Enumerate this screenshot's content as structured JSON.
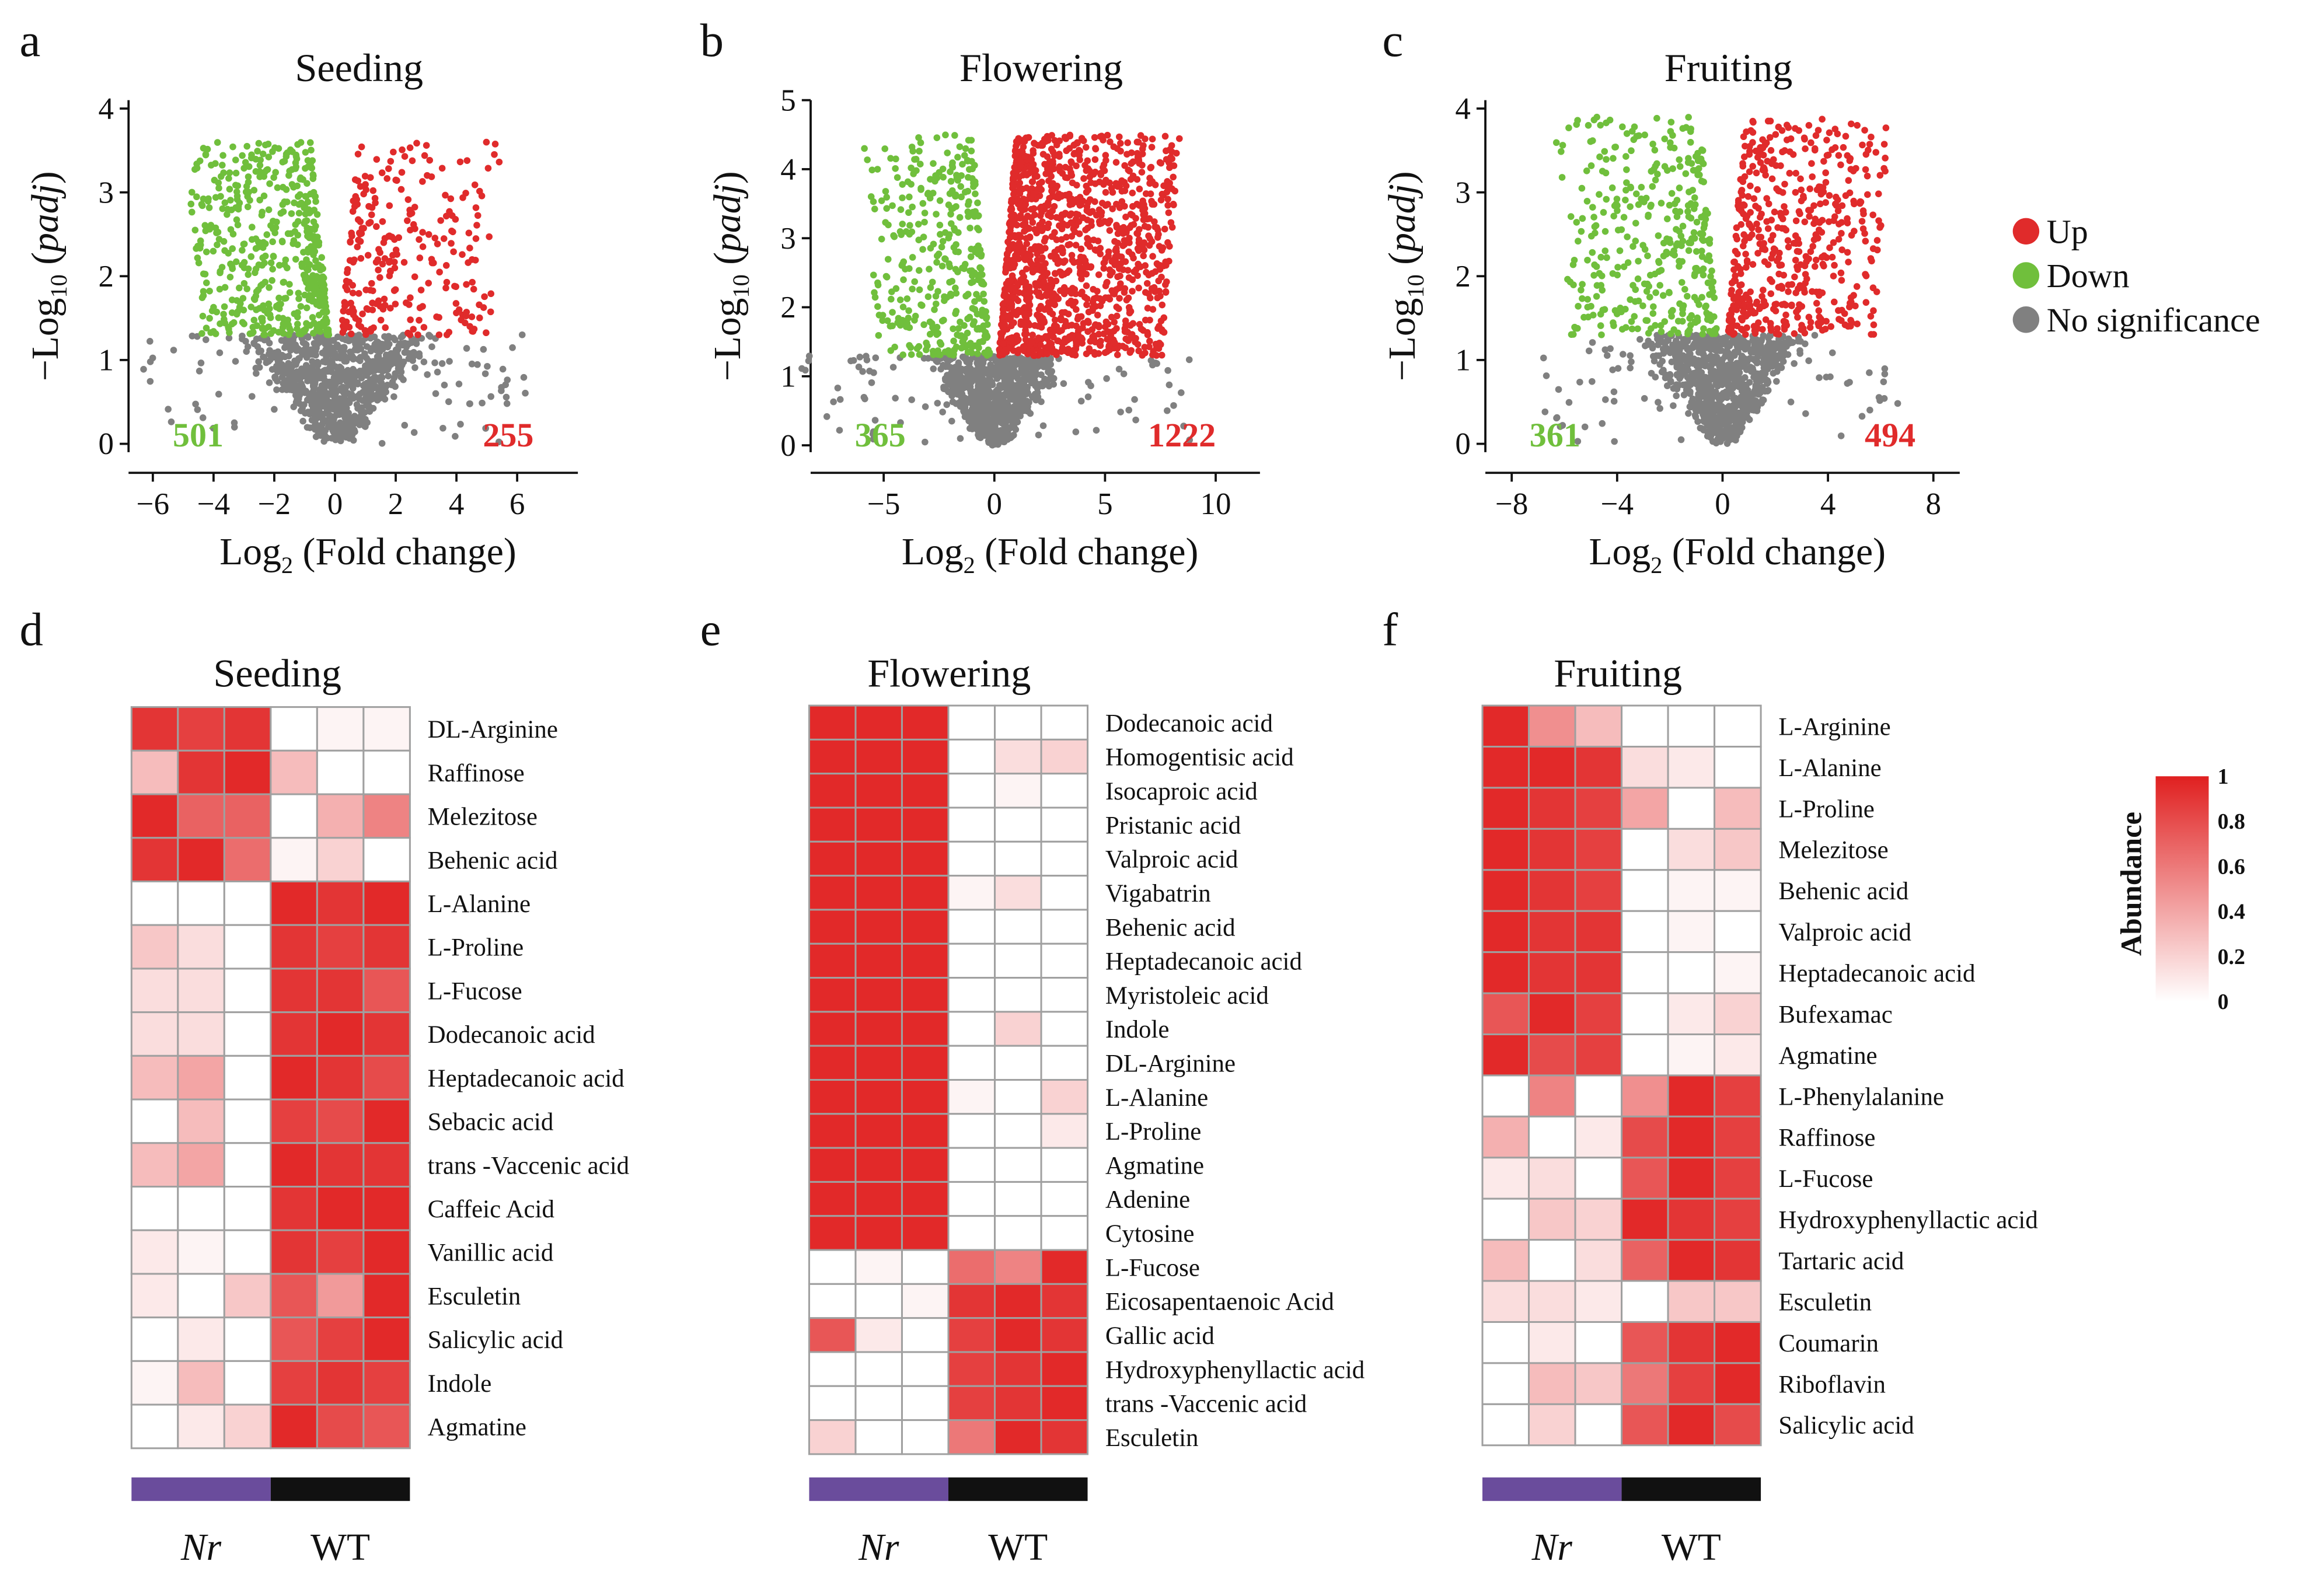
{
  "colors": {
    "up": "#e02b2b",
    "down": "#70bf3c",
    "ns": "#808080",
    "nr_bar": "#6a4c9c",
    "wt_bar": "#111111",
    "cell_grid": "#a0a0a0"
  },
  "legend": {
    "up": "Up",
    "down": "Down",
    "ns": "No significance"
  },
  "chart_data": [
    {
      "id": "a",
      "type": "scatter",
      "title": "Seeding",
      "xlabel": "Log2 (Fold change)",
      "ylabel": "-Log10 (padj)",
      "xlim": [
        -6.8,
        8
      ],
      "ylim": [
        -0.1,
        4.1
      ],
      "xticks": [
        -6,
        -4,
        -2,
        0,
        2,
        4,
        6
      ],
      "xtick_labels": [
        "−6",
        "−4",
        "−2",
        "0",
        "2",
        "4",
        "6"
      ],
      "yticks": [
        0,
        1,
        2,
        3,
        4
      ],
      "ytick_labels": [
        "0",
        "1",
        "2",
        "3",
        "4"
      ],
      "down_count": "501",
      "up_count": "255",
      "down_n": 501,
      "up_n": 255,
      "ns_n": 900,
      "sig_y": 1.3,
      "ymax": 3.6
    },
    {
      "id": "b",
      "type": "scatter",
      "title": "Flowering",
      "xlabel": "Log2 (Fold change)",
      "ylabel": "-Log10 (padj)",
      "xlim": [
        -8.3,
        12
      ],
      "ylim": [
        -0.1,
        5.0
      ],
      "xticks": [
        -5,
        0,
        5,
        10
      ],
      "xtick_labels": [
        "−5",
        "0",
        "5",
        "10"
      ],
      "yticks": [
        0,
        1,
        2,
        3,
        4,
        5
      ],
      "ytick_labels": [
        "0",
        "1",
        "2",
        "3",
        "4",
        "5"
      ],
      "down_count": "365",
      "up_count": "1222",
      "down_n": 365,
      "up_n": 1222,
      "ns_n": 900,
      "sig_y": 1.3,
      "ymax": 4.5
    },
    {
      "id": "c",
      "type": "scatter",
      "title": "Fruiting",
      "xlabel": "Log2 (Fold change)",
      "ylabel": "-Log10 (padj)",
      "xlim": [
        -9,
        9
      ],
      "ylim": [
        -0.1,
        4.1
      ],
      "xticks": [
        -8,
        -4,
        0,
        4,
        8
      ],
      "xtick_labels": [
        "−8",
        "−4",
        "0",
        "4",
        "8"
      ],
      "yticks": [
        0,
        1,
        2,
        3,
        4
      ],
      "ytick_labels": [
        "0",
        "1",
        "2",
        "3",
        "4"
      ],
      "down_count": "361",
      "up_count": "494",
      "down_n": 361,
      "up_n": 494,
      "ns_n": 900,
      "sig_y": 1.3,
      "ymax": 3.9
    },
    {
      "id": "d",
      "type": "heatmap",
      "title": "Seeding",
      "groups": [
        "Nr",
        "WT"
      ],
      "rows": [
        "DL-Arginine",
        "Raffinose",
        "Melezitose",
        "Behenic acid",
        "L-Alanine",
        "L-Proline",
        "L-Fucose",
        "Dodecanoic acid",
        "Heptadecanoic acid",
        "Sebacic acid",
        "trans -Vaccenic acid",
        "Caffeic Acid",
        "Vanillic acid",
        "Esculetin",
        "Salicylic acid",
        "Indole",
        "Agmatine"
      ],
      "values": [
        [
          0.9,
          0.85,
          0.9,
          0.0,
          0.05,
          0.05
        ],
        [
          0.3,
          0.9,
          0.95,
          0.3,
          0.0,
          0.0
        ],
        [
          0.95,
          0.7,
          0.7,
          0.0,
          0.35,
          0.55
        ],
        [
          0.9,
          0.95,
          0.65,
          0.05,
          0.2,
          0.0
        ],
        [
          0.0,
          0.0,
          0.0,
          0.95,
          0.9,
          0.95
        ],
        [
          0.25,
          0.15,
          0.0,
          0.9,
          0.85,
          0.9
        ],
        [
          0.15,
          0.15,
          0.0,
          0.9,
          0.9,
          0.75
        ],
        [
          0.15,
          0.15,
          0.0,
          0.9,
          0.95,
          0.9
        ],
        [
          0.3,
          0.4,
          0.0,
          0.95,
          0.9,
          0.8
        ],
        [
          0.0,
          0.3,
          0.0,
          0.85,
          0.8,
          0.95
        ],
        [
          0.3,
          0.4,
          0.0,
          0.95,
          0.9,
          0.9
        ],
        [
          0.0,
          0.0,
          0.0,
          0.9,
          0.95,
          0.95
        ],
        [
          0.1,
          0.05,
          0.0,
          0.9,
          0.85,
          0.95
        ],
        [
          0.1,
          0.0,
          0.25,
          0.75,
          0.45,
          0.95
        ],
        [
          0.0,
          0.1,
          0.0,
          0.75,
          0.85,
          0.95
        ],
        [
          0.05,
          0.3,
          0.0,
          0.85,
          0.9,
          0.85
        ],
        [
          0.0,
          0.1,
          0.2,
          0.95,
          0.8,
          0.75
        ]
      ]
    },
    {
      "id": "e",
      "type": "heatmap",
      "title": "Flowering",
      "groups": [
        "Nr",
        "WT"
      ],
      "rows": [
        "Dodecanoic acid",
        "Homogentisic acid",
        "Isocaproic acid",
        "Pristanic acid",
        "Valproic acid",
        "Vigabatrin",
        "Behenic acid",
        "Heptadecanoic acid",
        "Myristoleic acid",
        "Indole",
        "DL-Arginine",
        "L-Alanine",
        "L-Proline",
        "Agmatine",
        "Adenine",
        "Cytosine",
        "L-Fucose",
        "Eicosapentaenoic Acid",
        "Gallic acid",
        "Hydroxyphenyllactic acid",
        "trans -Vaccenic acid",
        "Esculetin"
      ],
      "values": [
        [
          0.95,
          0.95,
          0.95,
          0.0,
          0.0,
          0.0
        ],
        [
          0.95,
          0.95,
          0.95,
          0.0,
          0.15,
          0.2
        ],
        [
          0.95,
          0.95,
          0.95,
          0.0,
          0.05,
          0.0
        ],
        [
          0.95,
          0.95,
          0.95,
          0.0,
          0.0,
          0.0
        ],
        [
          0.95,
          0.95,
          0.95,
          0.0,
          0.0,
          0.0
        ],
        [
          0.95,
          0.95,
          0.95,
          0.05,
          0.15,
          0.0
        ],
        [
          0.95,
          0.95,
          0.95,
          0.0,
          0.0,
          0.0
        ],
        [
          0.95,
          0.95,
          0.95,
          0.0,
          0.0,
          0.0
        ],
        [
          0.95,
          0.95,
          0.95,
          0.0,
          0.0,
          0.0
        ],
        [
          0.95,
          0.95,
          0.95,
          0.0,
          0.2,
          0.0
        ],
        [
          0.95,
          0.95,
          0.95,
          0.0,
          0.0,
          0.0
        ],
        [
          0.95,
          0.95,
          0.95,
          0.05,
          0.0,
          0.2
        ],
        [
          0.95,
          0.95,
          0.95,
          0.0,
          0.0,
          0.1
        ],
        [
          0.95,
          0.95,
          0.95,
          0.0,
          0.0,
          0.0
        ],
        [
          0.95,
          0.95,
          0.95,
          0.0,
          0.0,
          0.0
        ],
        [
          0.95,
          0.95,
          0.95,
          0.0,
          0.0,
          0.0
        ],
        [
          0.0,
          0.05,
          0.0,
          0.65,
          0.55,
          0.95
        ],
        [
          0.0,
          0.0,
          0.05,
          0.9,
          0.95,
          0.9
        ],
        [
          0.75,
          0.1,
          0.0,
          0.85,
          0.95,
          0.9
        ],
        [
          0.0,
          0.0,
          0.0,
          0.85,
          0.9,
          0.95
        ],
        [
          0.0,
          0.0,
          0.0,
          0.85,
          0.9,
          0.95
        ],
        [
          0.2,
          0.0,
          0.0,
          0.6,
          0.95,
          0.9
        ]
      ]
    },
    {
      "id": "f",
      "type": "heatmap",
      "title": "Fruiting",
      "groups": [
        "Nr",
        "WT"
      ],
      "rows": [
        "L-Arginine",
        "L-Alanine",
        "L-Proline",
        "Melezitose",
        "Behenic acid",
        "Valproic acid",
        "Heptadecanoic acid",
        "Bufexamac",
        "Agmatine",
        "L-Phenylalanine",
        "Raffinose",
        "L-Fucose",
        "Hydroxyphenyllactic acid",
        "Tartaric acid",
        "Esculetin",
        "Coumarin",
        "Riboflavin",
        "Salicylic acid"
      ],
      "values": [
        [
          0.95,
          0.5,
          0.3,
          0.0,
          0.0,
          0.0
        ],
        [
          0.95,
          0.95,
          0.9,
          0.15,
          0.1,
          0.0
        ],
        [
          0.95,
          0.9,
          0.85,
          0.4,
          0.0,
          0.3
        ],
        [
          0.95,
          0.9,
          0.85,
          0.0,
          0.15,
          0.25
        ],
        [
          0.95,
          0.9,
          0.85,
          0.0,
          0.05,
          0.05
        ],
        [
          0.95,
          0.9,
          0.9,
          0.0,
          0.05,
          0.0
        ],
        [
          0.95,
          0.9,
          0.9,
          0.0,
          0.0,
          0.05
        ],
        [
          0.75,
          0.95,
          0.85,
          0.0,
          0.1,
          0.2
        ],
        [
          0.95,
          0.8,
          0.85,
          0.0,
          0.05,
          0.1
        ],
        [
          0.0,
          0.55,
          0.0,
          0.5,
          0.95,
          0.85
        ],
        [
          0.35,
          0.0,
          0.1,
          0.8,
          0.95,
          0.85
        ],
        [
          0.1,
          0.15,
          0.0,
          0.75,
          0.95,
          0.85
        ],
        [
          0.0,
          0.25,
          0.2,
          0.95,
          0.9,
          0.85
        ],
        [
          0.3,
          0.0,
          0.15,
          0.7,
          0.95,
          0.9
        ],
        [
          0.15,
          0.15,
          0.1,
          0.0,
          0.25,
          0.25
        ],
        [
          0.0,
          0.1,
          0.0,
          0.75,
          0.9,
          0.95
        ],
        [
          0.0,
          0.3,
          0.25,
          0.6,
          0.85,
          0.95
        ],
        [
          0.0,
          0.2,
          0.0,
          0.75,
          0.95,
          0.8
        ]
      ]
    }
  ],
  "colorbar": {
    "title": "Abundance",
    "ticks": [
      "1",
      "0.8",
      "0.6",
      "0.4",
      "0.2",
      "0"
    ],
    "tick_values": [
      1,
      0.8,
      0.6,
      0.4,
      0.2,
      0
    ]
  },
  "panel_labels": {
    "a": "a",
    "b": "b",
    "c": "c",
    "d": "d",
    "e": "e",
    "f": "f"
  },
  "group_labels": {
    "nr": "Nr",
    "wt": "WT"
  }
}
